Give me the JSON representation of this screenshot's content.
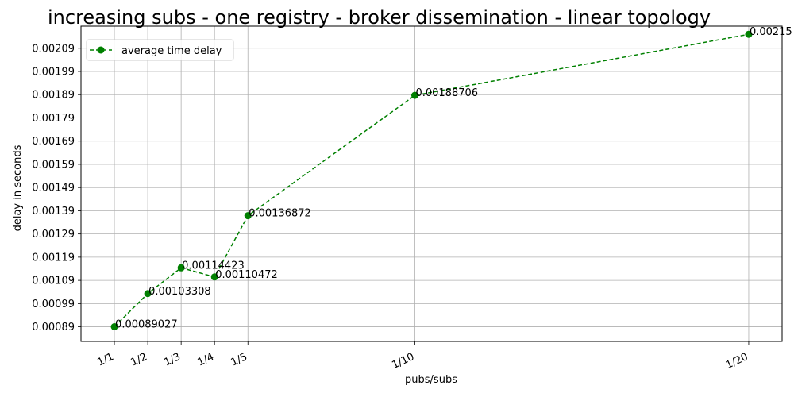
{
  "chart_data": {
    "type": "line",
    "title": "increasing subs - one registry - broker dissemination - linear topology",
    "xlabel": "pubs/subs",
    "ylabel": "delay in seconds",
    "grid": true,
    "legend_position": "top-left",
    "x_ticks": [
      {
        "value": 1,
        "label": "1/1"
      },
      {
        "value": 2,
        "label": "1/2"
      },
      {
        "value": 3,
        "label": "1/3"
      },
      {
        "value": 4,
        "label": "1/4"
      },
      {
        "value": 5,
        "label": "1/5"
      },
      {
        "value": 10,
        "label": "1/10"
      },
      {
        "value": 20,
        "label": "1/20"
      }
    ],
    "y_ticks": [
      "0.00089",
      "0.00099",
      "0.00109",
      "0.00119",
      "0.00129",
      "0.00139",
      "0.00149",
      "0.00159",
      "0.00169",
      "0.00179",
      "0.00189",
      "0.00199",
      "0.00209"
    ],
    "xlim": [
      0,
      21
    ],
    "ylim": [
      0.000827,
      0.002185
    ],
    "series": [
      {
        "name": "average time delay",
        "color": "#008000",
        "line_style": "dashed",
        "marker": "circle",
        "x": [
          1,
          2,
          3,
          4,
          5,
          10,
          20
        ],
        "y": [
          0.00089027,
          0.00103308,
          0.00114423,
          0.00110472,
          0.00136872,
          0.00188706,
          0.00215
        ],
        "labels": [
          "0.00089027",
          "0.00103308",
          "0.00114423",
          "0.00110472",
          "0.00136872",
          "0.00188706",
          "0.00215"
        ]
      }
    ]
  }
}
